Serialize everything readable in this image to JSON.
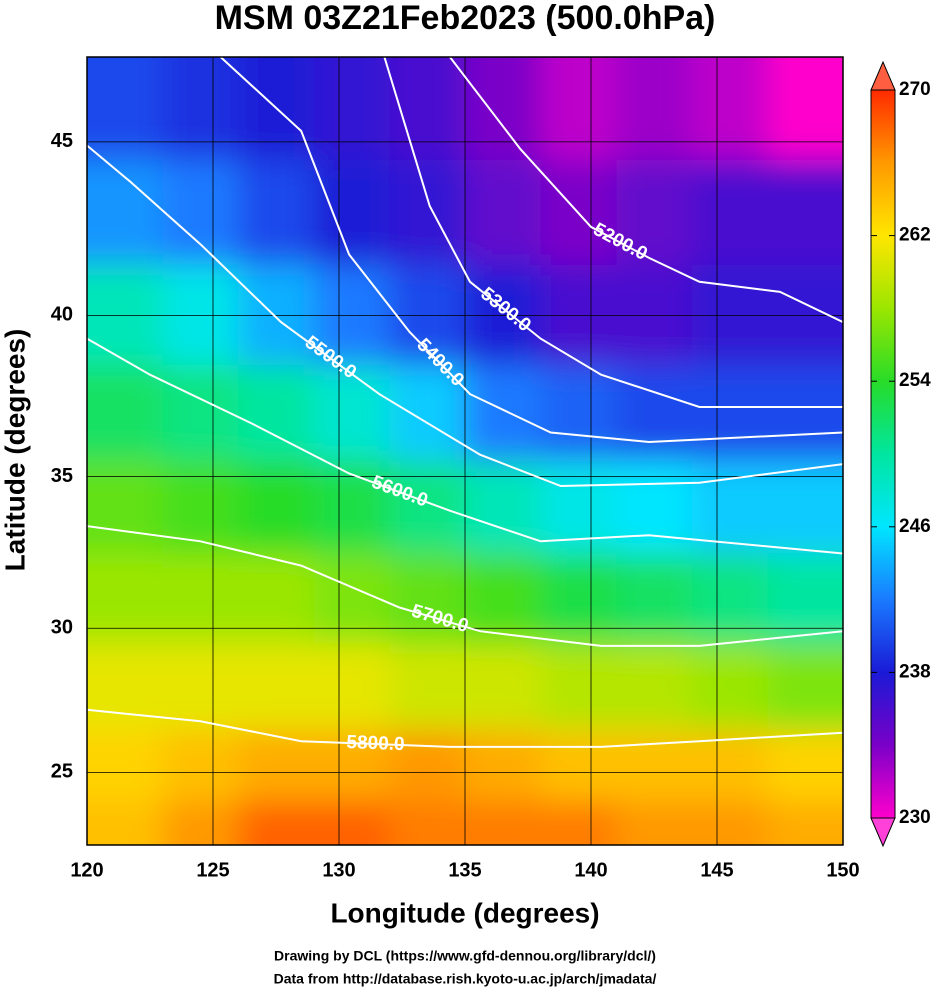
{
  "chart_data": {
    "type": "map",
    "title": "MSM 03Z21Feb2023 (500.0hPa)",
    "x_label": "Longitude (degrees)",
    "y_label": "Latitude  (degrees)",
    "footer": [
      "Drawing by DCL (https://www.gfd-dennou.org/library/dcl/)",
      "Data from http://database.rish.kyoto-u.ac.jp/arch/jmadata/"
    ],
    "projection": "mercator",
    "xlim": [
      120,
      150
    ],
    "ylim": [
      22.4,
      47.3
    ],
    "xticks": [
      120,
      125,
      130,
      135,
      140,
      145,
      150
    ],
    "yticks": [
      25,
      30,
      35,
      40,
      45
    ],
    "grid": true,
    "field": {
      "lon": [
        121.5,
        124.5,
        127.5,
        130.5,
        133.5,
        136.5,
        139.5,
        142.5,
        145.5,
        148.5
      ],
      "lat": [
        46,
        43,
        40,
        37,
        34,
        31,
        28,
        25,
        23
      ],
      "values": [
        [
          240,
          239,
          238,
          237,
          236,
          234,
          232,
          233,
          232,
          230
        ],
        [
          243,
          242,
          240,
          238,
          237,
          235,
          234,
          235,
          236,
          236
        ],
        [
          249,
          247,
          244,
          242,
          240,
          238,
          236,
          236,
          237,
          237
        ],
        [
          252,
          251,
          250,
          248,
          245,
          242,
          241,
          240,
          240,
          240
        ],
        [
          256,
          255,
          254,
          253,
          251,
          249,
          247,
          246,
          245,
          245
        ],
        [
          258,
          258,
          258,
          257,
          256,
          255,
          253,
          252,
          251,
          250
        ],
        [
          261,
          261,
          261,
          261,
          260,
          260,
          259,
          259,
          258,
          257
        ],
        [
          263,
          264,
          265,
          265,
          266,
          265,
          264,
          264,
          264,
          263
        ],
        [
          264,
          266,
          268,
          268,
          267,
          267,
          267,
          266,
          266,
          265
        ]
      ]
    },
    "colorbar": {
      "lim": [
        230,
        270
      ],
      "ticks": [
        230,
        238,
        246,
        254,
        262,
        270
      ],
      "colors": [
        "#ff00cc",
        "#7a00c8",
        "#1a1ad6",
        "#1a7aff",
        "#00e6ff",
        "#00e6a0",
        "#28dc28",
        "#9be600",
        "#ffe600",
        "#ff9900",
        "#ff2a00"
      ]
    },
    "contour_color": "#ffffff",
    "contours": [
      {
        "value": 5200,
        "label": "5200.0",
        "lon": [
          134.4,
          137.2,
          140.0,
          142.3,
          144.3,
          147.5,
          150
        ],
        "lat": [
          47.3,
          44.8,
          42.6,
          41.7,
          41.0,
          40.7,
          39.8
        ]
      },
      {
        "value": 5300,
        "label": "5300.0",
        "lon": [
          131.8,
          133.6,
          135.2,
          138.0,
          140.4,
          144.3,
          150
        ],
        "lat": [
          47.3,
          43.2,
          41.0,
          39.3,
          38.2,
          37.2,
          37.2
        ]
      },
      {
        "value": 5400,
        "label": "5400.0",
        "lon": [
          125.3,
          128.5,
          130.4,
          132.8,
          135.2,
          138.4,
          142.3,
          150
        ],
        "lat": [
          47.3,
          45.3,
          41.8,
          39.5,
          37.6,
          36.4,
          36.1,
          36.4
        ]
      },
      {
        "value": 5500,
        "label": "5500.0",
        "lon": [
          120,
          121.7,
          124.5,
          127.7,
          131.6,
          135.6,
          138.8,
          144.3,
          150
        ],
        "lat": [
          44.9,
          43.9,
          42.1,
          39.8,
          37.6,
          35.7,
          34.7,
          34.8,
          35.4
        ]
      },
      {
        "value": 5600,
        "label": "5600.0",
        "lon": [
          120,
          122.5,
          126.5,
          130.4,
          134.4,
          138.0,
          142.3,
          150
        ],
        "lat": [
          39.3,
          38.2,
          36.7,
          35.1,
          33.9,
          32.9,
          33.1,
          32.5
        ]
      },
      {
        "value": 5700,
        "label": "5700.0",
        "lon": [
          120,
          124.5,
          128.5,
          132.4,
          135.6,
          140.4,
          144.3,
          150
        ],
        "lat": [
          33.4,
          32.9,
          32.1,
          30.7,
          29.9,
          29.4,
          29.4,
          29.9
        ]
      },
      {
        "value": 5800,
        "label": "5800.0",
        "lon": [
          120,
          124.5,
          128.5,
          134.4,
          140.4,
          144.3,
          150
        ],
        "lat": [
          27.2,
          26.8,
          26.1,
          25.9,
          25.9,
          26.1,
          26.4
        ]
      }
    ]
  }
}
